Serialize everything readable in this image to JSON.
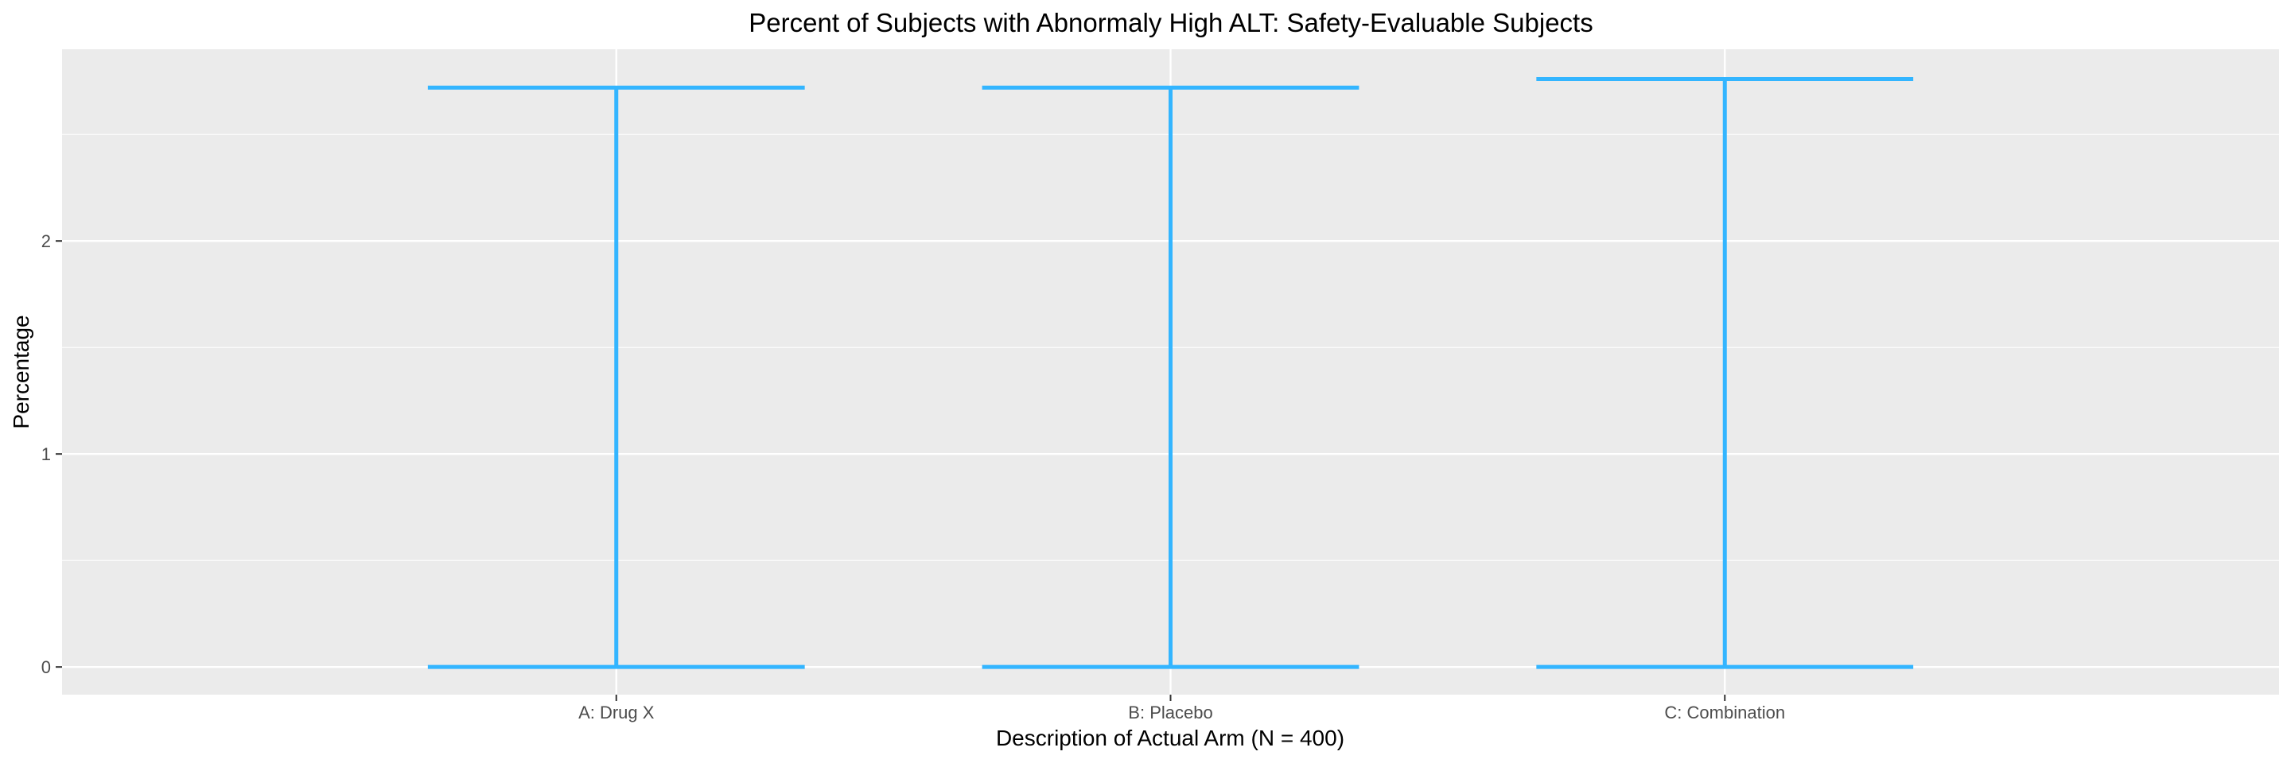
{
  "chart_data": {
    "type": "errorbar",
    "title": "Percent of Subjects with Abnormaly High ALT: Safety-Evaluable Subjects",
    "xlabel": "Description of Actual Arm (N = 400)",
    "ylabel": "Percentage",
    "categories": [
      "A: Drug X",
      "B: Placebo",
      "C: Combination"
    ],
    "lower": [
      0,
      0,
      0
    ],
    "upper": [
      2.72,
      2.72,
      2.76
    ],
    "yticks": [
      0,
      1,
      2
    ],
    "ylim": [
      -0.13,
      2.9
    ],
    "grid": true,
    "legend": "none",
    "colors": {
      "errorbar": "#33b5ff",
      "panel": "#ebebeb",
      "grid": "#ffffff",
      "tick": "#333333"
    }
  }
}
